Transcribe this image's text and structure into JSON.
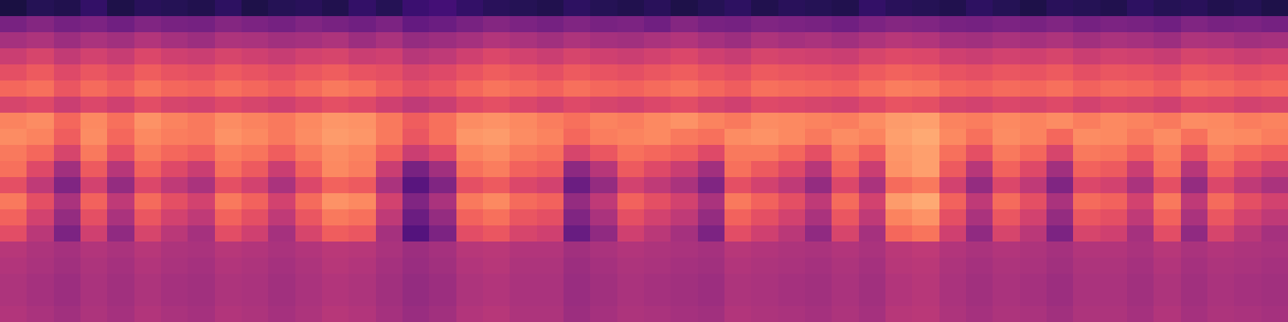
{
  "chart_data": {
    "type": "heatmap",
    "tick_labels": false,
    "zlim": [
      0,
      100
    ],
    "cells": [
      [
        12,
        15,
        14,
        18,
        13,
        16,
        15,
        14,
        17,
        13,
        15,
        16,
        14,
        18,
        15,
        20,
        22,
        18,
        16,
        15,
        14,
        17,
        15,
        14,
        16,
        13,
        15,
        17,
        14,
        16,
        15,
        14,
        18,
        16,
        15,
        14,
        17,
        15,
        13,
        16,
        15,
        14,
        17,
        15,
        16,
        14,
        15,
        13
      ],
      [
        35,
        38,
        34,
        36,
        33,
        37,
        35,
        34,
        38,
        36,
        34,
        37,
        35,
        33,
        36,
        30,
        32,
        35,
        38,
        36,
        34,
        37,
        35,
        36,
        33,
        38,
        35,
        34,
        37,
        36,
        35,
        33,
        36,
        38,
        37,
        35,
        34,
        36,
        35,
        37,
        34,
        36,
        35,
        33,
        37,
        35,
        36,
        34
      ],
      [
        46,
        48,
        44,
        47,
        45,
        49,
        46,
        44,
        48,
        47,
        45,
        46,
        48,
        44,
        47,
        42,
        44,
        46,
        49,
        47,
        45,
        48,
        46,
        45,
        47,
        49,
        46,
        44,
        48,
        46,
        47,
        45,
        48,
        50,
        49,
        46,
        45,
        47,
        46,
        48,
        45,
        47,
        46,
        44,
        48,
        47,
        45,
        46
      ],
      [
        55,
        58,
        53,
        57,
        54,
        59,
        56,
        55,
        58,
        56,
        54,
        57,
        58,
        55,
        56,
        50,
        52,
        56,
        59,
        57,
        55,
        58,
        56,
        55,
        57,
        59,
        56,
        54,
        58,
        57,
        56,
        55,
        58,
        60,
        59,
        56,
        55,
        57,
        56,
        58,
        55,
        57,
        56,
        54,
        58,
        57,
        55,
        56
      ],
      [
        62,
        65,
        60,
        64,
        61,
        66,
        63,
        62,
        65,
        63,
        61,
        64,
        66,
        63,
        62,
        58,
        60,
        63,
        66,
        64,
        62,
        65,
        63,
        62,
        64,
        66,
        63,
        61,
        65,
        64,
        63,
        62,
        65,
        67,
        66,
        63,
        62,
        64,
        63,
        65,
        62,
        64,
        63,
        61,
        65,
        64,
        62,
        63
      ],
      [
        68,
        70,
        64,
        69,
        66,
        71,
        68,
        67,
        70,
        68,
        66,
        69,
        72,
        70,
        66,
        62,
        64,
        68,
        71,
        69,
        67,
        70,
        68,
        67,
        69,
        71,
        68,
        66,
        70,
        69,
        68,
        67,
        70,
        73,
        72,
        68,
        67,
        69,
        68,
        70,
        67,
        69,
        68,
        66,
        70,
        69,
        67,
        68
      ],
      [
        58,
        60,
        55,
        59,
        56,
        61,
        58,
        57,
        60,
        58,
        56,
        59,
        62,
        60,
        56,
        52,
        55,
        60,
        62,
        59,
        57,
        60,
        58,
        57,
        59,
        61,
        58,
        56,
        60,
        59,
        58,
        57,
        60,
        63,
        62,
        58,
        57,
        59,
        58,
        60,
        57,
        59,
        58,
        56,
        60,
        59,
        57,
        58
      ],
      [
        74,
        76,
        68,
        75,
        70,
        77,
        74,
        72,
        76,
        74,
        72,
        75,
        78,
        77,
        72,
        66,
        70,
        76,
        77,
        75,
        73,
        70,
        74,
        73,
        75,
        77,
        74,
        72,
        76,
        75,
        74,
        73,
        76,
        79,
        80,
        74,
        73,
        75,
        74,
        76,
        73,
        75,
        74,
        72,
        76,
        75,
        73,
        74
      ],
      [
        76,
        74,
        66,
        76,
        68,
        75,
        73,
        72,
        77,
        75,
        72,
        76,
        79,
        78,
        72,
        64,
        70,
        78,
        79,
        76,
        74,
        68,
        73,
        74,
        75,
        72,
        70,
        76,
        77,
        75,
        72,
        76,
        74,
        80,
        82,
        75,
        70,
        76,
        74,
        68,
        76,
        75,
        72,
        76,
        70,
        76,
        75,
        73
      ],
      [
        72,
        68,
        58,
        72,
        62,
        72,
        68,
        66,
        73,
        71,
        66,
        72,
        76,
        74,
        66,
        55,
        60,
        74,
        76,
        72,
        70,
        58,
        64,
        70,
        68,
        66,
        60,
        72,
        72,
        68,
        62,
        72,
        66,
        78,
        80,
        70,
        62,
        72,
        68,
        58,
        72,
        71,
        66,
        73,
        62,
        72,
        68,
        66
      ],
      [
        70,
        60,
        45,
        65,
        50,
        67,
        60,
        55,
        70,
        65,
        55,
        67,
        75,
        73,
        55,
        35,
        45,
        70,
        73,
        67,
        65,
        40,
        50,
        65,
        60,
        55,
        45,
        70,
        65,
        60,
        50,
        67,
        55,
        77,
        80,
        65,
        50,
        67,
        60,
        45,
        67,
        65,
        55,
        70,
        50,
        67,
        60,
        55
      ],
      [
        62,
        52,
        37,
        57,
        42,
        59,
        52,
        47,
        62,
        57,
        47,
        59,
        67,
        65,
        47,
        27,
        37,
        62,
        65,
        59,
        57,
        32,
        42,
        57,
        52,
        47,
        37,
        62,
        57,
        52,
        42,
        59,
        47,
        69,
        72,
        57,
        42,
        59,
        52,
        37,
        59,
        57,
        47,
        62,
        42,
        59,
        52,
        47
      ],
      [
        72,
        62,
        47,
        67,
        52,
        69,
        62,
        57,
        72,
        67,
        57,
        69,
        77,
        75,
        57,
        37,
        47,
        72,
        75,
        69,
        67,
        42,
        52,
        67,
        62,
        57,
        47,
        72,
        67,
        62,
        52,
        69,
        57,
        79,
        82,
        67,
        52,
        69,
        62,
        47,
        69,
        67,
        57,
        72,
        52,
        69,
        62,
        57
      ],
      [
        67,
        57,
        42,
        62,
        47,
        64,
        57,
        52,
        67,
        62,
        52,
        64,
        72,
        70,
        52,
        32,
        42,
        67,
        70,
        64,
        62,
        37,
        47,
        62,
        57,
        52,
        42,
        67,
        62,
        57,
        47,
        64,
        52,
        74,
        77,
        62,
        47,
        64,
        57,
        42,
        64,
        62,
        52,
        67,
        47,
        64,
        57,
        52
      ],
      [
        61,
        51,
        36,
        56,
        41,
        58,
        51,
        46,
        61,
        56,
        46,
        58,
        66,
        64,
        46,
        26,
        36,
        61,
        64,
        58,
        56,
        31,
        41,
        56,
        51,
        46,
        36,
        61,
        56,
        51,
        41,
        58,
        46,
        68,
        71,
        56,
        41,
        58,
        51,
        36,
        58,
        56,
        46,
        61,
        41,
        58,
        51,
        46
      ],
      [
        50,
        48,
        46,
        49,
        47,
        50,
        48,
        47,
        50,
        49,
        47,
        49,
        51,
        50,
        47,
        44,
        46,
        50,
        51,
        49,
        49,
        45,
        47,
        49,
        48,
        47,
        46,
        50,
        49,
        48,
        47,
        49,
        47,
        51,
        52,
        49,
        47,
        49,
        48,
        46,
        49,
        49,
        47,
        50,
        47,
        49,
        48,
        47
      ],
      [
        49,
        47,
        45,
        48,
        46,
        49,
        47,
        46,
        49,
        48,
        46,
        48,
        50,
        49,
        46,
        43,
        45,
        49,
        50,
        48,
        48,
        44,
        46,
        48,
        47,
        46,
        45,
        49,
        48,
        47,
        46,
        48,
        46,
        50,
        51,
        48,
        46,
        48,
        47,
        45,
        48,
        48,
        46,
        49,
        46,
        48,
        47,
        46
      ],
      [
        48,
        46,
        44,
        47,
        45,
        48,
        46,
        45,
        48,
        47,
        45,
        47,
        49,
        48,
        45,
        42,
        44,
        48,
        49,
        47,
        47,
        43,
        45,
        47,
        46,
        45,
        44,
        48,
        47,
        46,
        45,
        47,
        45,
        49,
        50,
        47,
        45,
        47,
        46,
        44,
        47,
        47,
        45,
        48,
        45,
        47,
        46,
        45
      ],
      [
        48,
        46,
        44,
        47,
        45,
        48,
        46,
        45,
        48,
        47,
        45,
        47,
        49,
        48,
        45,
        42,
        44,
        48,
        49,
        47,
        47,
        43,
        45,
        47,
        46,
        45,
        44,
        48,
        47,
        46,
        45,
        47,
        45,
        49,
        50,
        47,
        45,
        47,
        46,
        44,
        47,
        47,
        45,
        48,
        45,
        47,
        46,
        45
      ],
      [
        49,
        47,
        45,
        48,
        46,
        49,
        47,
        46,
        49,
        48,
        46,
        48,
        50,
        49,
        46,
        43,
        45,
        49,
        50,
        48,
        48,
        44,
        46,
        48,
        47,
        46,
        45,
        49,
        48,
        47,
        46,
        48,
        46,
        50,
        51,
        48,
        46,
        48,
        47,
        45,
        48,
        48,
        46,
        49,
        46,
        48,
        47,
        46
      ]
    ]
  }
}
